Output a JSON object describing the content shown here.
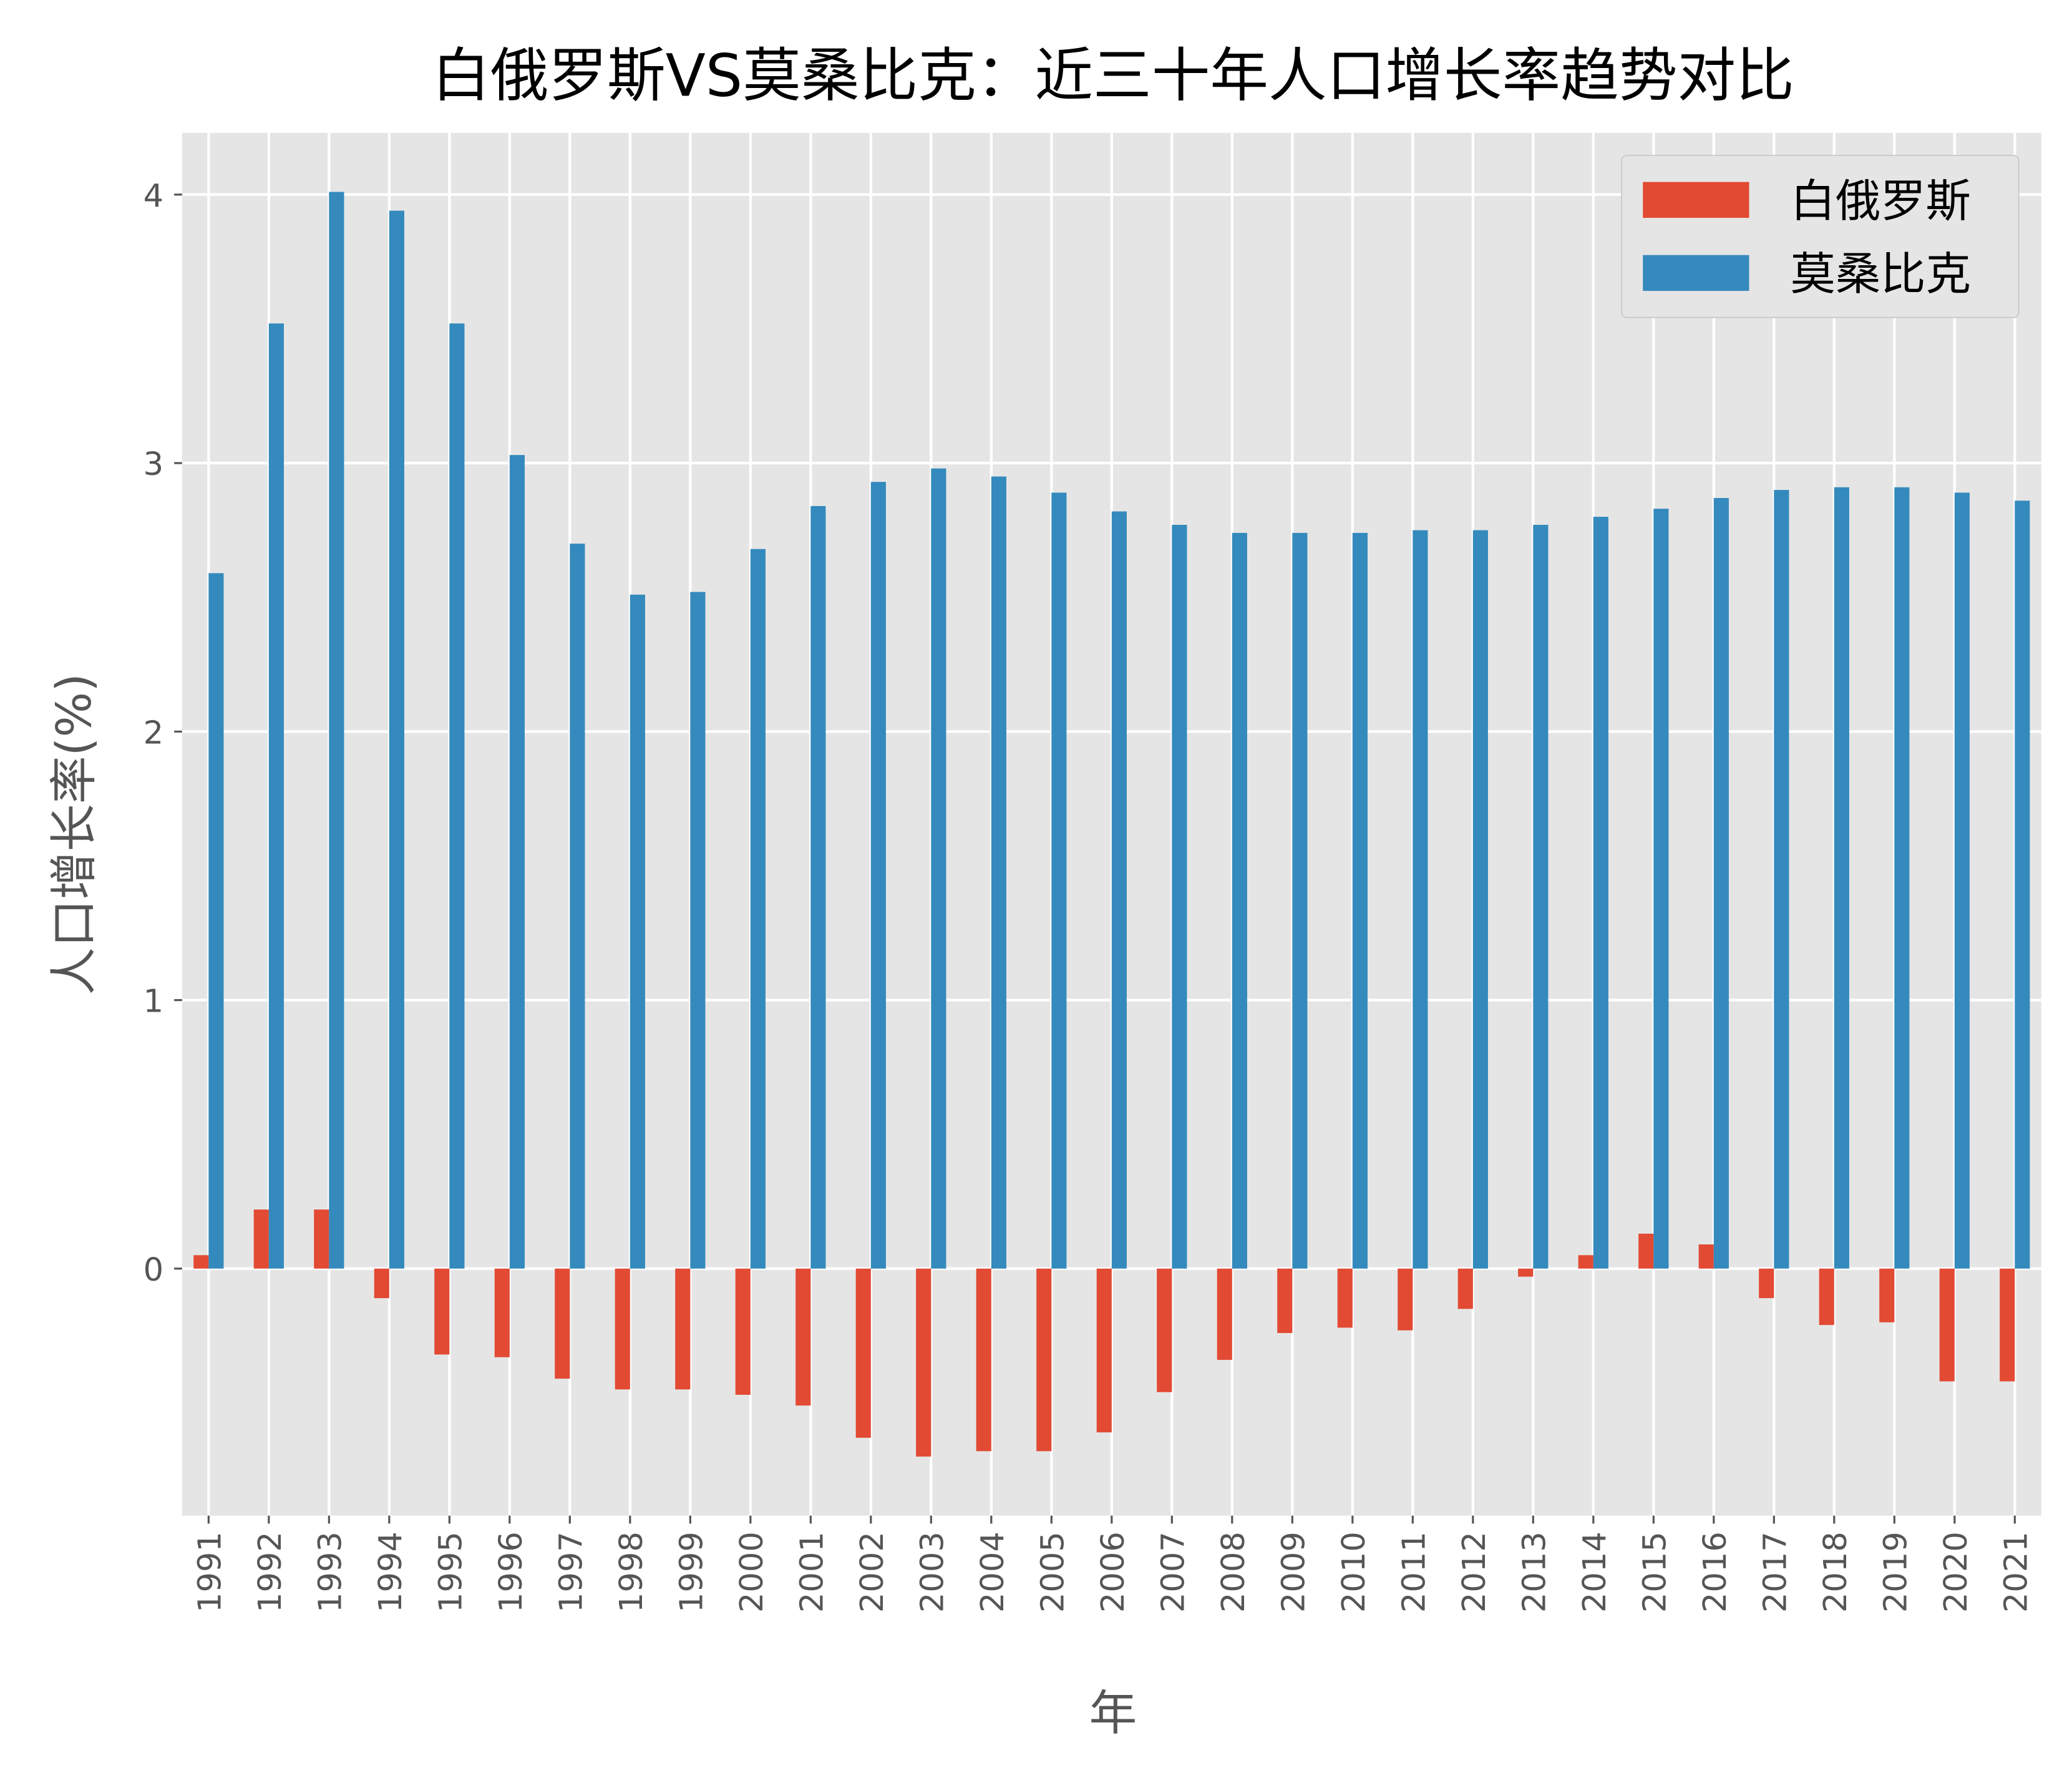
{
  "chart_data": {
    "type": "bar",
    "title": "白俄罗斯VS莫桑比克：近三十年人口增长率趋势对比",
    "xlabel": "年",
    "ylabel": "人口增长率(%)",
    "ylim": [
      -0.92,
      4.23
    ],
    "yticks": [
      "0",
      "1",
      "2",
      "3",
      "4"
    ],
    "grid": true,
    "legend_position": "top-right",
    "categories": [
      "1991",
      "1992",
      "1993",
      "1994",
      "1995",
      "1996",
      "1997",
      "1998",
      "1999",
      "2000",
      "2001",
      "2002",
      "2003",
      "2004",
      "2005",
      "2006",
      "2007",
      "2008",
      "2009",
      "2010",
      "2011",
      "2012",
      "2013",
      "2014",
      "2015",
      "2016",
      "2017",
      "2018",
      "2019",
      "2020",
      "2021"
    ],
    "series": [
      {
        "name": "白俄罗斯",
        "color": "#E24A33",
        "values": [
          0.05,
          0.22,
          0.22,
          -0.11,
          -0.32,
          -0.33,
          -0.41,
          -0.45,
          -0.45,
          -0.47,
          -0.51,
          -0.63,
          -0.7,
          -0.68,
          -0.68,
          -0.61,
          -0.46,
          -0.34,
          -0.24,
          -0.22,
          -0.23,
          -0.15,
          -0.03,
          0.05,
          0.13,
          0.09,
          -0.11,
          -0.21,
          -0.2,
          -0.42,
          -0.42
        ]
      },
      {
        "name": "莫桑比克",
        "color": "#348ABD",
        "values": [
          2.59,
          3.52,
          4.01,
          3.94,
          3.52,
          3.03,
          2.7,
          2.51,
          2.52,
          2.68,
          2.84,
          2.93,
          2.98,
          2.95,
          2.89,
          2.82,
          2.77,
          2.74,
          2.74,
          2.74,
          2.75,
          2.75,
          2.77,
          2.8,
          2.83,
          2.87,
          2.9,
          2.91,
          2.91,
          2.89,
          2.86
        ]
      }
    ]
  }
}
